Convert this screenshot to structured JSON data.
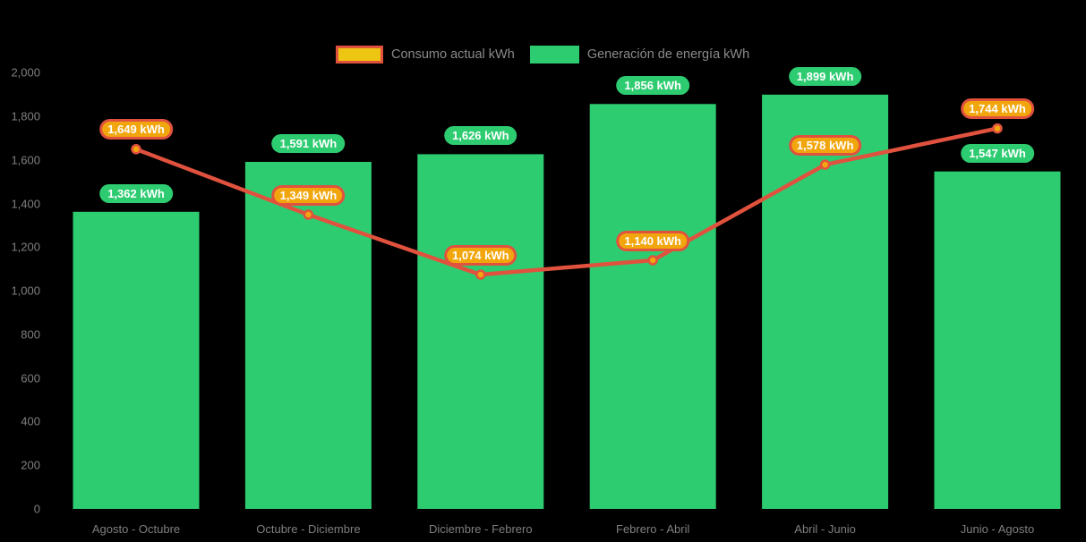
{
  "chart_data": {
    "type": "combo-bar-line",
    "categories": [
      "Agosto - Octubre",
      "Octubre - Diciembre",
      "Diciembre - Febrero",
      "Febrero - Abril",
      "Abril - Junio",
      "Junio - Agosto"
    ],
    "series": [
      {
        "name": "Consumo actual kWh",
        "kind": "line",
        "color": "#e0523e",
        "point_color": "#f2a60d",
        "swatch_fill": "#eec513",
        "label_bg": "#f2a60d",
        "values": [
          1649,
          1349,
          1074,
          1140,
          1578,
          1744
        ],
        "value_labels": [
          "1,649 kWh",
          "1,349 kWh",
          "1,074 kWh",
          "1,140 kWh",
          "1,578 kWh",
          "1,744 kWh"
        ]
      },
      {
        "name": "Generación de energía kWh",
        "kind": "bar",
        "color": "#2ecc71",
        "label_bg": "#2ecc71",
        "values": [
          1362,
          1591,
          1626,
          1856,
          1899,
          1547
        ],
        "value_labels": [
          "1,362 kWh",
          "1,591 kWh",
          "1,626 kWh",
          "1,856 kWh",
          "1,899 kWh",
          "1,547 kWh"
        ]
      }
    ],
    "ylim": [
      0,
      2000
    ],
    "y_ticks": [
      {
        "value": 0,
        "label": "0"
      },
      {
        "value": 200,
        "label": "200"
      },
      {
        "value": 400,
        "label": "400"
      },
      {
        "value": 600,
        "label": "600"
      },
      {
        "value": 800,
        "label": "800"
      },
      {
        "value": 1000,
        "label": "1,000"
      },
      {
        "value": 1200,
        "label": "1,200"
      },
      {
        "value": 1400,
        "label": "1,400"
      },
      {
        "value": 1600,
        "label": "1,600"
      },
      {
        "value": 1800,
        "label": "1,800"
      },
      {
        "value": 2000,
        "label": "2,000"
      }
    ],
    "grid": false,
    "legend_position": "top",
    "background": "#000000",
    "axis_text_color": "#7f7f7f",
    "legend_text_color": "#8a8a8a",
    "value_label_text_color": "#ffffff"
  }
}
